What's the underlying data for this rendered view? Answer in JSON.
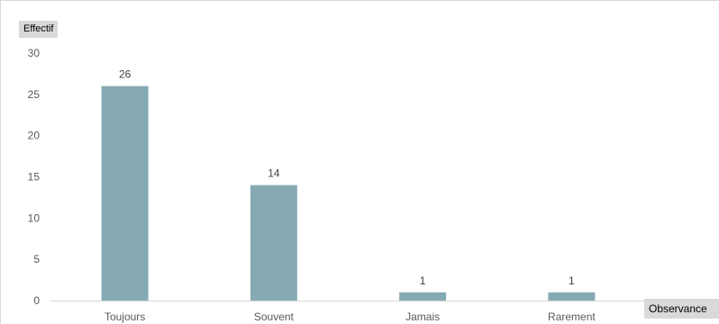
{
  "chart_data": {
    "type": "bar",
    "categories": [
      "Toujours",
      "Souvent",
      "Jamais",
      "Rarement"
    ],
    "values": [
      26,
      14,
      1,
      1
    ],
    "ylabel": "Effectif",
    "xlabel": "Observance",
    "ylim": [
      0,
      30
    ],
    "yticks": [
      0,
      5,
      10,
      15,
      20,
      25,
      30
    ],
    "grid": false,
    "data_labels": true,
    "bar_color": "#86aab4"
  }
}
